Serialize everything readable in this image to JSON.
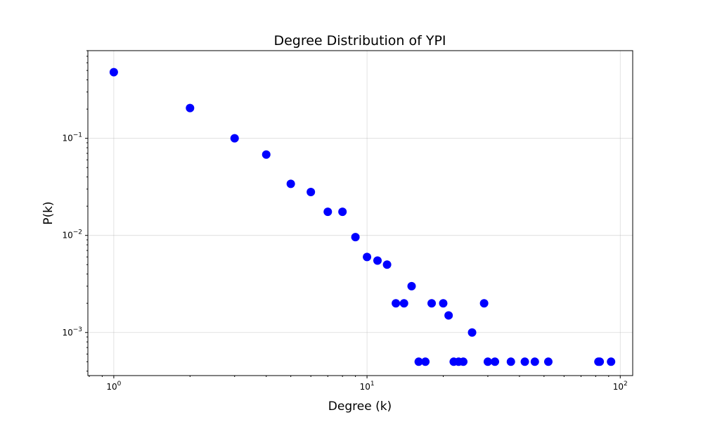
{
  "chart_data": {
    "type": "scatter",
    "title": "Degree Distribution of YPI",
    "xlabel": "Degree (k)",
    "ylabel": "P(k)",
    "x_scale": "log",
    "y_scale": "log",
    "xlim": [
      0.79,
      112
    ],
    "ylim": [
      0.00036,
      0.8
    ],
    "grid": true,
    "marker_color": "#0000ff",
    "x_ticks": [
      {
        "value": 1,
        "base": "10",
        "exp": "0"
      },
      {
        "value": 10,
        "base": "10",
        "exp": "1"
      },
      {
        "value": 100,
        "base": "10",
        "exp": "2"
      }
    ],
    "y_ticks": [
      {
        "value": 0.001,
        "base": "10",
        "exp": "−3"
      },
      {
        "value": 0.01,
        "base": "10",
        "exp": "−2"
      },
      {
        "value": 0.1,
        "base": "10",
        "exp": "−1"
      }
    ],
    "points": [
      {
        "x": 1,
        "y": 0.48
      },
      {
        "x": 2,
        "y": 0.205
      },
      {
        "x": 3,
        "y": 0.1
      },
      {
        "x": 4,
        "y": 0.068
      },
      {
        "x": 5,
        "y": 0.034
      },
      {
        "x": 6,
        "y": 0.028
      },
      {
        "x": 7,
        "y": 0.0175
      },
      {
        "x": 8,
        "y": 0.0175
      },
      {
        "x": 9,
        "y": 0.0096
      },
      {
        "x": 10,
        "y": 0.006
      },
      {
        "x": 11,
        "y": 0.0055
      },
      {
        "x": 12,
        "y": 0.005
      },
      {
        "x": 13,
        "y": 0.002
      },
      {
        "x": 14,
        "y": 0.002
      },
      {
        "x": 15,
        "y": 0.003
      },
      {
        "x": 16,
        "y": 0.0005
      },
      {
        "x": 17,
        "y": 0.0005
      },
      {
        "x": 18,
        "y": 0.002
      },
      {
        "x": 20,
        "y": 0.002
      },
      {
        "x": 21,
        "y": 0.0015
      },
      {
        "x": 22,
        "y": 0.0005
      },
      {
        "x": 23,
        "y": 0.0005
      },
      {
        "x": 24,
        "y": 0.0005
      },
      {
        "x": 26,
        "y": 0.001
      },
      {
        "x": 29,
        "y": 0.002
      },
      {
        "x": 30,
        "y": 0.0005
      },
      {
        "x": 32,
        "y": 0.0005
      },
      {
        "x": 37,
        "y": 0.0005
      },
      {
        "x": 42,
        "y": 0.0005
      },
      {
        "x": 46,
        "y": 0.0005
      },
      {
        "x": 52,
        "y": 0.0005
      },
      {
        "x": 82,
        "y": 0.0005
      },
      {
        "x": 83,
        "y": 0.0005
      },
      {
        "x": 92,
        "y": 0.0005
      }
    ]
  }
}
